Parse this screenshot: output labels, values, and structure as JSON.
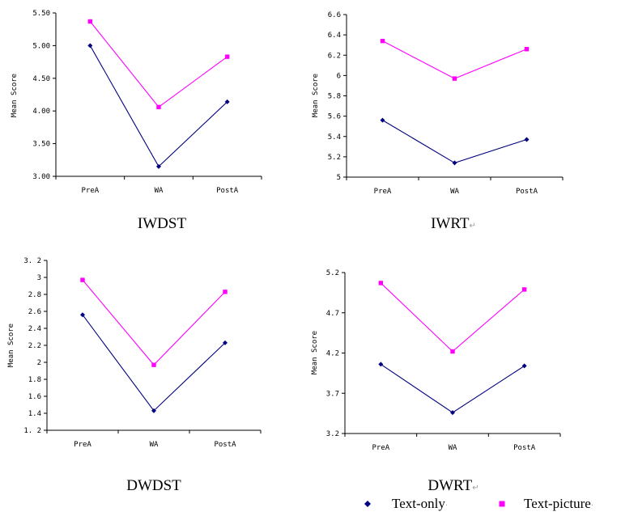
{
  "series_styles": [
    {
      "color": "#000080",
      "marker": "diamond"
    },
    {
      "color": "#ff00ff",
      "marker": "square"
    }
  ],
  "paragraph_mark": "↵",
  "legend": {
    "items": [
      "Text-only",
      "Text-picture"
    ],
    "placement": "bottom-right"
  },
  "chart_data": [
    {
      "type": "line",
      "title": "IWDST",
      "ylabel": "Mean Score",
      "categories": [
        "PreA",
        "WA",
        "PostA"
      ],
      "ylim": [
        3.0,
        5.5
      ],
      "yticks": [
        "3.00",
        "3.50",
        "4.00",
        "4.50",
        "5.00",
        "5.50"
      ],
      "series": [
        {
          "name": "Text-only",
          "values": [
            5.0,
            3.15,
            4.14
          ]
        },
        {
          "name": "Text-picture",
          "values": [
            5.37,
            4.06,
            4.83
          ]
        }
      ]
    },
    {
      "type": "line",
      "title": "IWRT",
      "ylabel": "Mean Score",
      "categories": [
        "PreA",
        "WA",
        "PostA"
      ],
      "ylim": [
        5.0,
        6.6
      ],
      "yticks": [
        "5",
        "5.2",
        "5.4",
        "5.6",
        "5.8",
        "6",
        "6.2",
        "6.4",
        "6.6"
      ],
      "series": [
        {
          "name": "Text-only",
          "values": [
            5.56,
            5.14,
            5.37
          ]
        },
        {
          "name": "Text-picture",
          "values": [
            6.34,
            5.97,
            6.26
          ]
        }
      ]
    },
    {
      "type": "line",
      "title": "DWDST",
      "ylabel": "Mean Score",
      "categories": [
        "PreA",
        "WA",
        "PostA"
      ],
      "ylim": [
        1.2,
        3.2
      ],
      "yticks": [
        "1. 2",
        "1.4",
        "1.6",
        "1.8",
        "2",
        "2.2",
        "2.4",
        "2.6",
        "2.8",
        "3",
        "3. 2"
      ],
      "series": [
        {
          "name": "Text-only",
          "values": [
            2.56,
            1.43,
            2.23
          ]
        },
        {
          "name": "Text-picture",
          "values": [
            2.97,
            1.97,
            2.83
          ]
        }
      ]
    },
    {
      "type": "line",
      "title": "DWRT",
      "ylabel": "Mean Score",
      "categories": [
        "PreA",
        "WA",
        "PostA"
      ],
      "ylim": [
        3.2,
        5.2
      ],
      "yticks": [
        "3.2",
        "3.7",
        "4.2",
        "4.7",
        "5.2"
      ],
      "series": [
        {
          "name": "Text-only",
          "values": [
            4.06,
            3.46,
            4.04
          ]
        },
        {
          "name": "Text-picture",
          "values": [
            5.07,
            4.22,
            4.99
          ]
        }
      ]
    }
  ]
}
